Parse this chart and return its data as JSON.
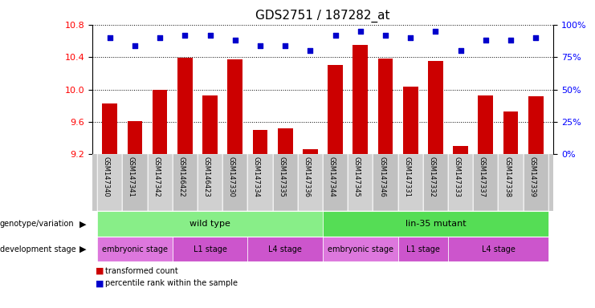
{
  "title": "GDS2751 / 187282_at",
  "samples": [
    "GSM147340",
    "GSM147341",
    "GSM147342",
    "GSM146422",
    "GSM146423",
    "GSM147330",
    "GSM147334",
    "GSM147335",
    "GSM147336",
    "GSM147344",
    "GSM147345",
    "GSM147346",
    "GSM147331",
    "GSM147332",
    "GSM147333",
    "GSM147337",
    "GSM147338",
    "GSM147339"
  ],
  "bar_values": [
    9.83,
    9.61,
    10.0,
    10.39,
    9.93,
    10.37,
    9.5,
    9.52,
    9.26,
    10.3,
    10.55,
    10.38,
    10.04,
    10.35,
    9.3,
    9.93,
    9.73,
    9.92
  ],
  "percentile_values": [
    90,
    84,
    90,
    92,
    92,
    88,
    84,
    84,
    80,
    92,
    95,
    92,
    90,
    95,
    80,
    88,
    88,
    90
  ],
  "ylim_left": [
    9.2,
    10.8
  ],
  "ylim_right": [
    0,
    100
  ],
  "yticks_left": [
    9.2,
    9.6,
    10.0,
    10.4,
    10.8
  ],
  "yticks_right": [
    0,
    25,
    50,
    75,
    100
  ],
  "bar_color": "#cc0000",
  "dot_color": "#0000cc",
  "bar_width": 0.6,
  "genotype_groups": [
    {
      "label": "wild type",
      "start": 0,
      "end": 8,
      "color": "#88ee88"
    },
    {
      "label": "lin-35 mutant",
      "start": 9,
      "end": 17,
      "color": "#55dd55"
    }
  ],
  "dev_stage_groups": [
    {
      "label": "embryonic stage",
      "start": 0,
      "end": 2,
      "color": "#dd77dd"
    },
    {
      "label": "L1 stage",
      "start": 3,
      "end": 5,
      "color": "#cc55cc"
    },
    {
      "label": "L4 stage",
      "start": 6,
      "end": 8,
      "color": "#cc55cc"
    },
    {
      "label": "embryonic stage",
      "start": 9,
      "end": 11,
      "color": "#dd77dd"
    },
    {
      "label": "L1 stage",
      "start": 12,
      "end": 13,
      "color": "#cc55cc"
    },
    {
      "label": "L4 stage",
      "start": 14,
      "end": 17,
      "color": "#cc55cc"
    }
  ],
  "tick_fontsize": 8,
  "title_fontsize": 11,
  "legend_labels": [
    "transformed count",
    "percentile rank within the sample"
  ],
  "legend_colors": [
    "#cc0000",
    "#0000cc"
  ]
}
